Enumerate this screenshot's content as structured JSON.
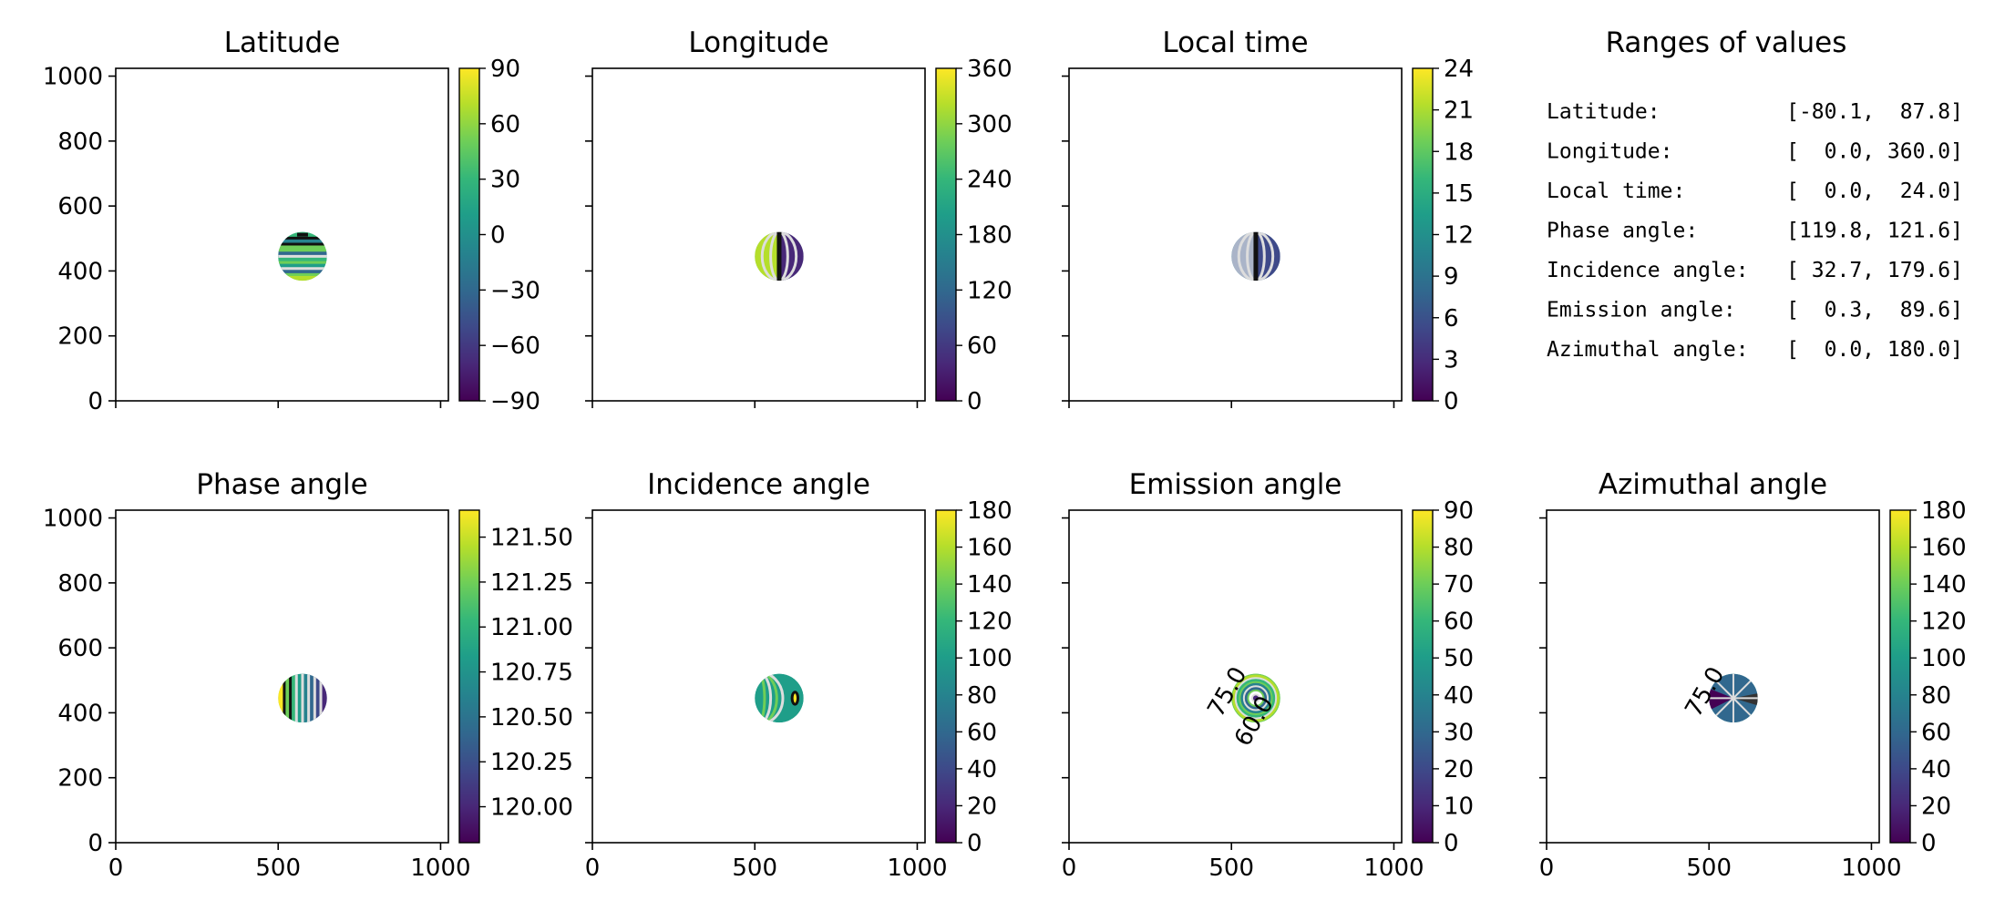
{
  "chart_data": [
    {
      "type": "heatmap",
      "title": "Latitude",
      "xlim": [
        0,
        1024
      ],
      "ylim": [
        0,
        1024
      ],
      "xticks": [
        0,
        500,
        1000
      ],
      "yticks": [
        0,
        200,
        400,
        600,
        800,
        1000
      ],
      "x_tick_labels_shown": false,
      "y_tick_labels_shown": true,
      "disk": {
        "center_x": 575,
        "center_y": 445,
        "radius": 75
      },
      "colorbar": {
        "range": [
          -90,
          90
        ],
        "ticks": [
          "90",
          "60",
          "30",
          "0",
          "−30",
          "−60",
          "−90"
        ]
      },
      "contours": "latitude bands"
    },
    {
      "type": "heatmap",
      "title": "Longitude",
      "xlim": [
        0,
        1024
      ],
      "ylim": [
        0,
        1024
      ],
      "xticks": [
        0,
        500,
        1000
      ],
      "yticks": [
        0,
        200,
        400,
        600,
        800,
        1000
      ],
      "x_tick_labels_shown": false,
      "y_tick_labels_shown": false,
      "disk": {
        "center_x": 575,
        "center_y": 445,
        "radius": 75
      },
      "colorbar": {
        "range": [
          0,
          360
        ],
        "ticks": [
          "360",
          "300",
          "240",
          "180",
          "120",
          "60",
          "0"
        ]
      },
      "contours": "meridians"
    },
    {
      "type": "heatmap",
      "title": "Local time",
      "xlim": [
        0,
        1024
      ],
      "ylim": [
        0,
        1024
      ],
      "xticks": [
        0,
        500,
        1000
      ],
      "yticks": [
        0,
        200,
        400,
        600,
        800,
        1000
      ],
      "x_tick_labels_shown": false,
      "y_tick_labels_shown": false,
      "disk": {
        "center_x": 575,
        "center_y": 445,
        "radius": 75
      },
      "colorbar": {
        "range": [
          0,
          24
        ],
        "ticks": [
          "24",
          "21",
          "18",
          "15",
          "12",
          "9",
          "6",
          "3",
          "0"
        ]
      },
      "contours": "meridians"
    },
    {
      "type": "table",
      "title": "Ranges of values",
      "rows": [
        "Latitude:          [-80.1,  87.8]",
        "Longitude:         [  0.0, 360.0]",
        "Local time:        [  0.0,  24.0]",
        "Phase angle:       [119.8, 121.6]",
        "Incidence angle:   [ 32.7, 179.6]",
        "Emission angle:    [  0.3,  89.6]",
        "Azimuthal angle:   [  0.0, 180.0]"
      ]
    },
    {
      "type": "heatmap",
      "title": "Phase angle",
      "xlim": [
        0,
        1024
      ],
      "ylim": [
        0,
        1024
      ],
      "xticks": [
        0,
        500,
        1000
      ],
      "yticks": [
        0,
        200,
        400,
        600,
        800,
        1000
      ],
      "x_tick_labels_shown": true,
      "y_tick_labels_shown": true,
      "disk": {
        "center_x": 575,
        "center_y": 445,
        "radius": 75
      },
      "colorbar": {
        "range": [
          119.8,
          121.65
        ],
        "ticks": [
          "121.50",
          "121.25",
          "121.00",
          "120.75",
          "120.50",
          "120.25",
          "120.00"
        ]
      },
      "contours": "vertical stripes"
    },
    {
      "type": "heatmap",
      "title": "Incidence angle",
      "xlim": [
        0,
        1024
      ],
      "ylim": [
        0,
        1024
      ],
      "xticks": [
        0,
        500,
        1000
      ],
      "yticks": [
        0,
        200,
        400,
        600,
        800,
        1000
      ],
      "x_tick_labels_shown": true,
      "y_tick_labels_shown": false,
      "disk": {
        "center_x": 575,
        "center_y": 445,
        "radius": 75
      },
      "colorbar": {
        "range": [
          0,
          180
        ],
        "ticks": [
          "180",
          "160",
          "140",
          "120",
          "100",
          "80",
          "60",
          "40",
          "20",
          "0"
        ]
      },
      "contours": "terminator arcs"
    },
    {
      "type": "heatmap",
      "title": "Emission angle",
      "xlim": [
        0,
        1024
      ],
      "ylim": [
        0,
        1024
      ],
      "xticks": [
        0,
        500,
        1000
      ],
      "yticks": [
        0,
        200,
        400,
        600,
        800,
        1000
      ],
      "x_tick_labels_shown": true,
      "y_tick_labels_shown": false,
      "disk": {
        "center_x": 575,
        "center_y": 445,
        "radius": 75
      },
      "colorbar": {
        "range": [
          0,
          90
        ],
        "ticks": [
          "90",
          "80",
          "70",
          "60",
          "50",
          "40",
          "30",
          "20",
          "10",
          "0"
        ]
      },
      "contours": "concentric rings",
      "contour_labels": [
        "75.0",
        "60.0"
      ]
    },
    {
      "type": "heatmap",
      "title": "Azimuthal angle",
      "xlim": [
        0,
        1024
      ],
      "ylim": [
        0,
        1024
      ],
      "xticks": [
        0,
        500,
        1000
      ],
      "yticks": [
        0,
        200,
        400,
        600,
        800,
        1000
      ],
      "x_tick_labels_shown": true,
      "y_tick_labels_shown": false,
      "disk": {
        "center_x": 575,
        "center_y": 445,
        "radius": 75
      },
      "colorbar": {
        "range": [
          0,
          180
        ],
        "ticks": [
          "180",
          "160",
          "140",
          "120",
          "100",
          "80",
          "60",
          "40",
          "20",
          "0"
        ]
      },
      "contours": "radial spokes",
      "contour_labels": [
        "75.0"
      ]
    }
  ],
  "colors": {
    "viridis": [
      "#440154",
      "#482878",
      "#3e4989",
      "#31688e",
      "#26828e",
      "#1f9e89",
      "#35b779",
      "#6ece58",
      "#b5de2b",
      "#fde725"
    ],
    "contour_light": "#dddddd",
    "contour_dark": "#111111"
  }
}
